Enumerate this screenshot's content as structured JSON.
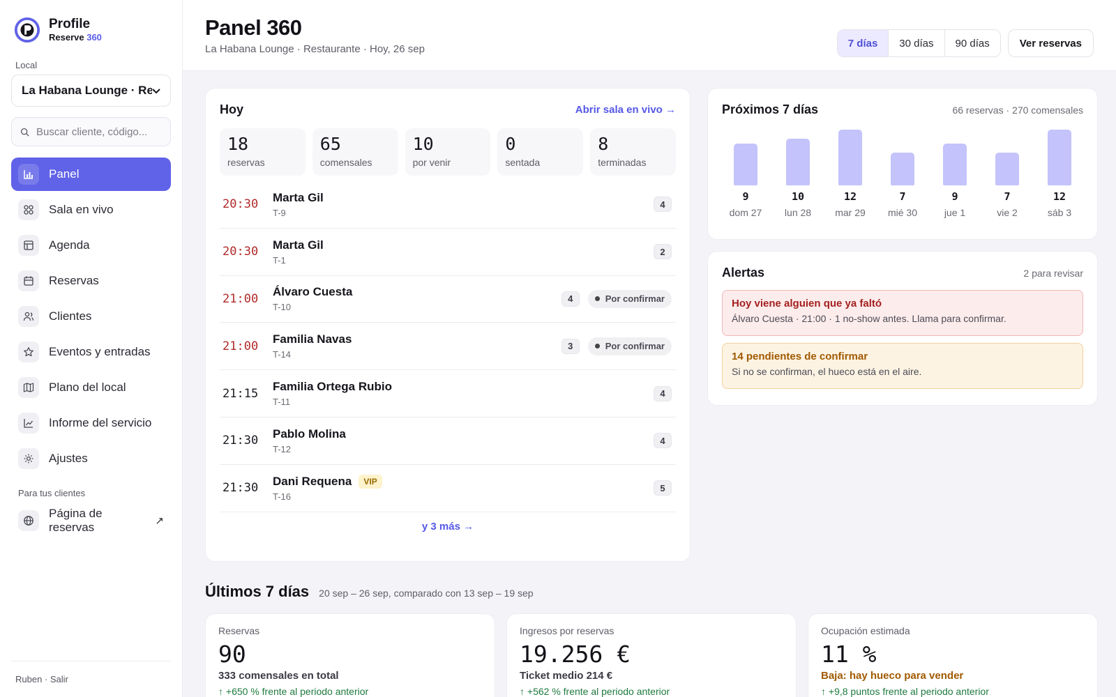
{
  "brand": {
    "name": "Profile",
    "sub_prefix": "Reserve ",
    "sub_accent": "360"
  },
  "sidebar": {
    "local_label": "Local",
    "local_value": "La Habana Lounge · Restaurante",
    "search_placeholder": "Buscar cliente, código...",
    "nav": [
      {
        "label": "Panel",
        "icon": "chart-icon"
      },
      {
        "label": "Sala en vivo",
        "icon": "grid-icon"
      },
      {
        "label": "Agenda",
        "icon": "table-icon"
      },
      {
        "label": "Reservas",
        "icon": "calendar-icon"
      },
      {
        "label": "Clientes",
        "icon": "users-icon"
      },
      {
        "label": "Eventos y entradas",
        "icon": "star-icon"
      },
      {
        "label": "Plano del local",
        "icon": "map-icon"
      },
      {
        "label": "Informe del servicio",
        "icon": "line-chart-icon"
      },
      {
        "label": "Ajustes",
        "icon": "gear-icon"
      }
    ],
    "clients_section_label": "Para tus clientes",
    "booking_page_label": "Página de reservas",
    "footer": "Ruben · Salir"
  },
  "header": {
    "title": "Panel 360",
    "subtitle": "La Habana Lounge · Restaurante · Hoy, 26 sep",
    "ranges": [
      "7 días",
      "30 días",
      "90 días"
    ],
    "active_range": "7 días",
    "view_reservations": "Ver reservas"
  },
  "today": {
    "title": "Hoy",
    "link": "Abrir sala en vivo →",
    "stats": [
      {
        "value": "18",
        "label": "reservas"
      },
      {
        "value": "65",
        "label": "comensales"
      },
      {
        "value": "10",
        "label": "por venir"
      },
      {
        "value": "0",
        "label": "sentada"
      },
      {
        "value": "8",
        "label": "terminadas"
      }
    ],
    "reservations": [
      {
        "time": "20:30",
        "name": "Marta Gil",
        "table": "T-9",
        "guests": "4",
        "status": "",
        "vip": ""
      },
      {
        "time": "20:30",
        "name": "Marta Gil",
        "table": "T-1",
        "guests": "2",
        "status": "",
        "vip": ""
      },
      {
        "time": "21:00",
        "name": "Álvaro Cuesta",
        "table": "T-10",
        "guests": "4",
        "status": "Por confirmar",
        "vip": ""
      },
      {
        "time": "21:00",
        "name": "Familia Navas",
        "table": "T-14",
        "guests": "3",
        "status": "Por confirmar",
        "vip": ""
      },
      {
        "time": "21:15",
        "name": "Familia Ortega Rubio",
        "table": "T-11",
        "guests": "4",
        "status": "",
        "vip": ""
      },
      {
        "time": "21:30",
        "name": "Pablo Molina",
        "table": "T-12",
        "guests": "4",
        "status": "",
        "vip": ""
      },
      {
        "time": "21:30",
        "name": "Dani Requena",
        "table": "T-16",
        "guests": "5",
        "status": "",
        "vip": "VIP"
      }
    ],
    "late_color": "#b22a2a",
    "more": "y 3 más →"
  },
  "next7": {
    "title": "Próximos 7 días",
    "summary": "66 reservas · 270 comensales",
    "days": [
      {
        "value": "9",
        "label": "dom 27"
      },
      {
        "value": "10",
        "label": "lun 28"
      },
      {
        "value": "12",
        "label": "mar 29"
      },
      {
        "value": "7",
        "label": "mié 30"
      },
      {
        "value": "9",
        "label": "jue 1"
      },
      {
        "value": "7",
        "label": "vie 2"
      },
      {
        "value": "12",
        "label": "sáb 3"
      }
    ],
    "bar_color": "#c4c3fb"
  },
  "alerts": {
    "title": "Alertas",
    "count": "2 para revisar",
    "items": [
      {
        "title": "Hoy viene alguien que ya faltó",
        "text": "Álvaro Cuesta · 21:00 · 1 no-show antes. Llama para confirmar."
      },
      {
        "title": "14 pendientes de confirmar",
        "text": "Si no se confirman, el hueco está en el aire."
      }
    ]
  },
  "last7": {
    "title": "Últimos 7 días",
    "subtitle": "20 sep – 26 sep, comparado con 13 sep – 19 sep",
    "kpis": [
      {
        "label": "Reservas",
        "value": "90",
        "sub": "333 comensales en total",
        "trend": "↑ +650 % frente al periodo anterior"
      },
      {
        "label": "Ingresos por reservas",
        "value": "19.256 €",
        "sub": "Ticket medio 214 €",
        "trend": "↑ +562 % frente al periodo anterior"
      },
      {
        "label": "Ocupación estimada",
        "value": "11 %",
        "sub": "Baja: hay hueco para vender",
        "trend": "↑ +9,8 puntos frente al periodo anterior"
      }
    ]
  },
  "colors": {
    "accent": "#6062e8",
    "link": "#5558e6",
    "positive": "#1e7a3e",
    "warning": "#a05a00",
    "danger": "#a32020"
  }
}
